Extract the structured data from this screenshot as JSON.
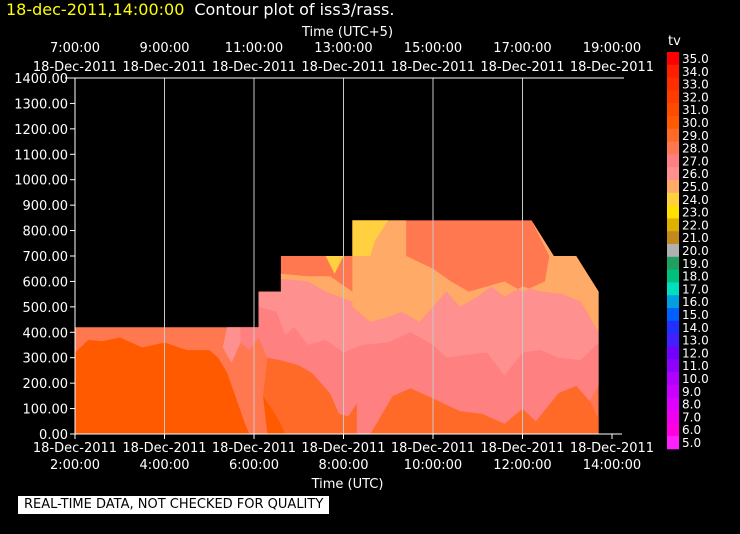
{
  "header": {
    "timestamp": "18-dec-2011,14:00:00",
    "title": "Contour plot of iss3/rass."
  },
  "footer": {
    "quality_note": "REAL-TIME DATA, NOT CHECKED FOR QUALITY"
  },
  "chart_data": {
    "type": "contour",
    "top_axis": {
      "label": "Time (UTC+5)",
      "ticks": [
        {
          "time": "7:00:00",
          "date": "18-Dec-2011"
        },
        {
          "time": "9:00:00",
          "date": "18-Dec-2011"
        },
        {
          "time": "11:00:00",
          "date": "18-Dec-2011"
        },
        {
          "time": "13:00:00",
          "date": "18-Dec-2011"
        },
        {
          "time": "15:00:00",
          "date": "18-Dec-2011"
        },
        {
          "time": "17:00:00",
          "date": "18-Dec-2011"
        },
        {
          "time": "19:00:00",
          "date": "18-Dec-2011"
        }
      ]
    },
    "x_axis": {
      "label": "Time (UTC)",
      "range_hours": [
        2,
        14
      ],
      "ticks": [
        {
          "value": 2,
          "date": "18-Dec-2011",
          "time": "2:00:00"
        },
        {
          "value": 4,
          "date": "18-Dec-2011",
          "time": "4:00:00"
        },
        {
          "value": 6,
          "date": "18-Dec-2011",
          "time": "6:00:00"
        },
        {
          "value": 8,
          "date": "18-Dec-2011",
          "time": "8:00:00"
        },
        {
          "value": 10,
          "date": "18-Dec-2011",
          "time": "10:00:00"
        },
        {
          "value": 12,
          "date": "18-Dec-2011",
          "time": "12:00:00"
        },
        {
          "value": 14,
          "date": "18-Dec-2011",
          "time": "14:00:00"
        }
      ]
    },
    "y_axis": {
      "range": [
        0,
        1400
      ],
      "ticks": [
        0,
        100,
        200,
        300,
        400,
        500,
        600,
        700,
        800,
        900,
        1000,
        1100,
        1200,
        1300,
        1400
      ],
      "tick_labels": [
        "0.00",
        "100.00",
        "200.00",
        "300.00",
        "400.00",
        "500.00",
        "600.00",
        "700.00",
        "800.00",
        "900.00",
        "1000.00",
        "1100.00",
        "1200.00",
        "1300.00",
        "1400.00"
      ]
    },
    "grid": "vertical",
    "legend": {
      "title": "tv",
      "placement": "right",
      "levels": [
        {
          "label": "35.0",
          "color": "#ff0000"
        },
        {
          "label": "34.0",
          "color": "#ff1e00"
        },
        {
          "label": "33.0",
          "color": "#ff2d00"
        },
        {
          "label": "32.0",
          "color": "#ff3c00"
        },
        {
          "label": "31.0",
          "color": "#ff4b00"
        },
        {
          "label": "30.0",
          "color": "#ff5a00"
        },
        {
          "label": "29.0",
          "color": "#ff6a28"
        },
        {
          "label": "28.0",
          "color": "#ff7850"
        },
        {
          "label": "27.0",
          "color": "#ff8080"
        },
        {
          "label": "26.0",
          "color": "#ff9090"
        },
        {
          "label": "25.0",
          "color": "#ffaa66"
        },
        {
          "label": "24.0",
          "color": "#ffd040"
        },
        {
          "label": "23.0",
          "color": "#ffe000"
        },
        {
          "label": "22.0",
          "color": "#e0b000"
        },
        {
          "label": "21.0",
          "color": "#c08a20"
        },
        {
          "label": "20.0",
          "color": "#b0b0b0"
        },
        {
          "label": "19.0",
          "color": "#20a060"
        },
        {
          "label": "18.0",
          "color": "#00c080"
        },
        {
          "label": "17.0",
          "color": "#00e0c0"
        },
        {
          "label": "16.0",
          "color": "#00a0e0"
        },
        {
          "label": "15.0",
          "color": "#0060ff"
        },
        {
          "label": "14.0",
          "color": "#2030ff"
        },
        {
          "label": "13.0",
          "color": "#4020ff"
        },
        {
          "label": "12.0",
          "color": "#7000ff"
        },
        {
          "label": "11.0",
          "color": "#9000ff"
        },
        {
          "label": "10.0",
          "color": "#b000ff"
        },
        {
          "label": "9.0",
          "color": "#c800ff"
        },
        {
          "label": "8.0",
          "color": "#e000ff"
        },
        {
          "label": "7.0",
          "color": "#f000f0"
        },
        {
          "label": "6.0",
          "color": "#ff00e0"
        },
        {
          "label": "5.0",
          "color": "#ff20ff"
        }
      ]
    },
    "regions": [
      {
        "level": "28.0",
        "points": [
          [
            2,
            420
          ],
          [
            6.1,
            420
          ],
          [
            6.1,
            560
          ],
          [
            6.6,
            560
          ],
          [
            6.6,
            700
          ],
          [
            8.2,
            700
          ],
          [
            8.2,
            840
          ],
          [
            12.2,
            840
          ],
          [
            12.7,
            700
          ],
          [
            13.2,
            700
          ],
          [
            13.7,
            560
          ],
          [
            13.7,
            0
          ],
          [
            2,
            0
          ]
        ]
      },
      {
        "level": "30.0",
        "points": [
          [
            2,
            320
          ],
          [
            2.3,
            370
          ],
          [
            2.6,
            365
          ],
          [
            3,
            380
          ],
          [
            3.5,
            340
          ],
          [
            4,
            360
          ],
          [
            4.5,
            330
          ],
          [
            5,
            330
          ],
          [
            5.2,
            300
          ],
          [
            5.4,
            240
          ],
          [
            5.6,
            140
          ],
          [
            5.8,
            40
          ],
          [
            5.9,
            0
          ],
          [
            2,
            0
          ]
        ]
      },
      {
        "level": "30.0",
        "points": [
          [
            6.2,
            150
          ],
          [
            6.4,
            100
          ],
          [
            6.6,
            40
          ],
          [
            6.7,
            0
          ],
          [
            6.3,
            0
          ]
        ]
      },
      {
        "level": "29.0",
        "points": [
          [
            6.3,
            300
          ],
          [
            6.6,
            290
          ],
          [
            7,
            270
          ],
          [
            7.3,
            240
          ],
          [
            7.7,
            160
          ],
          [
            7.9,
            80
          ],
          [
            8.1,
            70
          ],
          [
            8.3,
            120
          ],
          [
            8.3,
            0
          ],
          [
            6.7,
            0
          ],
          [
            6.6,
            40
          ],
          [
            6.4,
            100
          ],
          [
            6.2,
            150
          ]
        ]
      },
      {
        "level": "29.0",
        "points": [
          [
            8.6,
            0
          ],
          [
            8.8,
            60
          ],
          [
            9.1,
            150
          ],
          [
            9.5,
            180
          ],
          [
            10,
            140
          ],
          [
            10.6,
            90
          ],
          [
            11.1,
            80
          ],
          [
            11.6,
            40
          ],
          [
            12,
            100
          ],
          [
            12.3,
            50
          ],
          [
            12.8,
            160
          ],
          [
            13.2,
            190
          ],
          [
            13.5,
            130
          ],
          [
            13.7,
            60
          ],
          [
            13.7,
            0
          ]
        ]
      },
      {
        "level": "27.0",
        "points": [
          [
            5.7,
            420
          ],
          [
            6.1,
            420
          ],
          [
            6.1,
            500
          ],
          [
            6.5,
            480
          ],
          [
            6.7,
            390
          ],
          [
            6.9,
            420
          ],
          [
            7.2,
            350
          ],
          [
            7.6,
            370
          ],
          [
            8,
            320
          ],
          [
            8.4,
            350
          ],
          [
            9,
            360
          ],
          [
            9.5,
            400
          ],
          [
            10,
            350
          ],
          [
            10.3,
            300
          ],
          [
            10.7,
            310
          ],
          [
            11.2,
            320
          ],
          [
            11.6,
            230
          ],
          [
            12,
            320
          ],
          [
            12.4,
            330
          ],
          [
            12.8,
            300
          ],
          [
            13.3,
            290
          ],
          [
            13.7,
            360
          ],
          [
            13.7,
            190
          ],
          [
            13.5,
            130
          ],
          [
            13.2,
            190
          ],
          [
            12.8,
            160
          ],
          [
            12.3,
            50
          ],
          [
            12,
            100
          ],
          [
            11.6,
            40
          ],
          [
            11.1,
            80
          ],
          [
            10.6,
            90
          ],
          [
            10,
            140
          ],
          [
            9.5,
            180
          ],
          [
            9.1,
            150
          ],
          [
            8.8,
            60
          ],
          [
            8.6,
            0
          ],
          [
            8.3,
            0
          ],
          [
            8.3,
            120
          ],
          [
            8.1,
            70
          ],
          [
            7.9,
            80
          ],
          [
            7.7,
            160
          ],
          [
            7.3,
            240
          ],
          [
            7,
            270
          ],
          [
            6.6,
            290
          ],
          [
            6.3,
            300
          ],
          [
            6.1,
            380
          ],
          [
            5.9,
            330
          ],
          [
            5.7,
            360
          ]
        ]
      },
      {
        "level": "26.0",
        "points": [
          [
            6.6,
            560
          ],
          [
            6.6,
            610
          ],
          [
            7.2,
            600
          ],
          [
            7.6,
            560
          ],
          [
            8.2,
            520
          ],
          [
            8.2,
            500
          ],
          [
            8.6,
            440
          ],
          [
            9,
            460
          ],
          [
            9.3,
            480
          ],
          [
            9.7,
            440
          ],
          [
            10,
            500
          ],
          [
            10.3,
            560
          ],
          [
            10.6,
            500
          ],
          [
            11,
            540
          ],
          [
            11.3,
            580
          ],
          [
            11.6,
            540
          ],
          [
            12,
            580
          ],
          [
            12.4,
            560
          ],
          [
            12.9,
            550
          ],
          [
            13.3,
            520
          ],
          [
            13.7,
            400
          ],
          [
            13.7,
            360
          ],
          [
            13.3,
            290
          ],
          [
            12.8,
            300
          ],
          [
            12.4,
            330
          ],
          [
            12,
            320
          ],
          [
            11.6,
            230
          ],
          [
            11.2,
            320
          ],
          [
            10.7,
            310
          ],
          [
            10.3,
            300
          ],
          [
            10,
            350
          ],
          [
            9.5,
            400
          ],
          [
            9,
            360
          ],
          [
            8.4,
            350
          ],
          [
            8,
            320
          ],
          [
            7.6,
            370
          ],
          [
            7.2,
            350
          ],
          [
            6.9,
            420
          ],
          [
            6.7,
            390
          ],
          [
            6.5,
            480
          ],
          [
            6.1,
            500
          ],
          [
            6.1,
            560
          ]
        ]
      },
      {
        "level": "26.0",
        "points": [
          [
            5.4,
            420
          ],
          [
            5.7,
            420
          ],
          [
            5.7,
            360
          ],
          [
            5.5,
            280
          ],
          [
            5.3,
            340
          ]
        ]
      },
      {
        "level": "25.0",
        "points": [
          [
            6.6,
            700
          ],
          [
            6.6,
            630
          ],
          [
            7.2,
            620
          ],
          [
            7.7,
            620
          ],
          [
            8.2,
            560
          ],
          [
            8.2,
            840
          ],
          [
            9.4,
            840
          ],
          [
            9.4,
            700
          ],
          [
            10,
            650
          ],
          [
            10.4,
            600
          ],
          [
            10.8,
            560
          ],
          [
            11.2,
            580
          ],
          [
            11.6,
            600
          ],
          [
            12,
            560
          ],
          [
            12.5,
            600
          ],
          [
            12.6,
            700
          ],
          [
            12.2,
            840
          ],
          [
            12.2,
            840
          ],
          [
            12.7,
            700
          ],
          [
            13.2,
            700
          ],
          [
            13.7,
            560
          ],
          [
            13.7,
            400
          ],
          [
            13.3,
            520
          ],
          [
            12.9,
            550
          ],
          [
            12.4,
            560
          ],
          [
            12,
            580
          ],
          [
            11.6,
            540
          ],
          [
            11.3,
            580
          ],
          [
            11,
            540
          ],
          [
            10.6,
            500
          ],
          [
            10.3,
            560
          ],
          [
            10,
            500
          ],
          [
            9.7,
            440
          ],
          [
            9.3,
            480
          ],
          [
            9,
            460
          ],
          [
            8.6,
            440
          ],
          [
            8.2,
            500
          ],
          [
            8.2,
            520
          ],
          [
            7.6,
            560
          ],
          [
            7.2,
            600
          ],
          [
            6.6,
            610
          ]
        ]
      },
      {
        "level": "24.0",
        "points": [
          [
            8.2,
            840
          ],
          [
            8.2,
            700
          ],
          [
            8.6,
            700
          ],
          [
            8.7,
            760
          ],
          [
            9,
            840
          ]
        ]
      },
      {
        "level": "24.0",
        "points": [
          [
            7.6,
            700
          ],
          [
            8,
            700
          ],
          [
            7.8,
            630
          ]
        ]
      }
    ]
  }
}
